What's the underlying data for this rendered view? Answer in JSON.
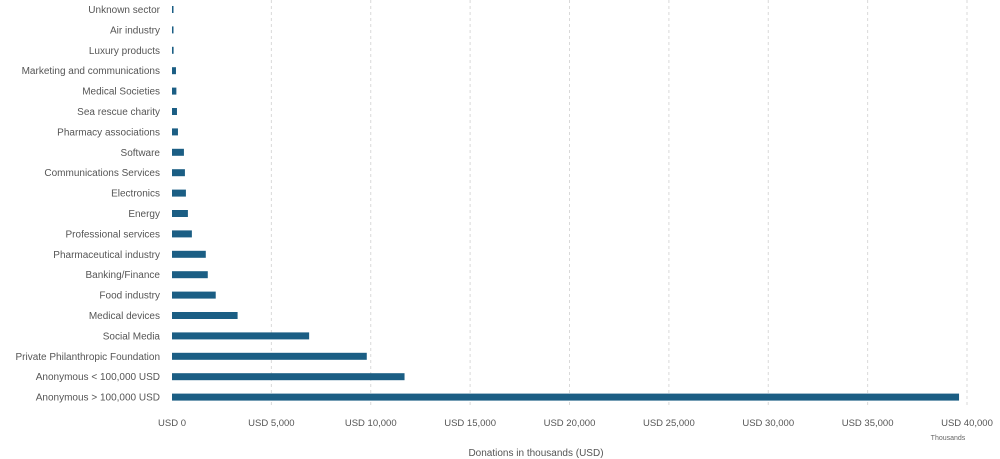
{
  "chart_data": {
    "type": "bar",
    "orientation": "horizontal",
    "categories": [
      "Unknown sector",
      "Air industry",
      "Luxury products",
      "Marketing and communications",
      "Medical Societies",
      "Sea rescue charity",
      "Pharmacy associations",
      "Software",
      "Communications Services",
      "Electronics",
      "Energy",
      "Professional services",
      "Pharmaceutical industry",
      "Banking/Finance",
      "Food industry",
      "Medical devices",
      "Social Media",
      "Private Philanthropic Foundation",
      "Anonymous < 100,000 USD",
      "Anonymous > 100,000 USD"
    ],
    "values": [
      50,
      60,
      80,
      200,
      220,
      250,
      300,
      600,
      650,
      700,
      800,
      1000,
      1700,
      1800,
      2200,
      3300,
      6900,
      9800,
      11700,
      39600
    ],
    "xlim": [
      0,
      40000
    ],
    "xticks": [
      0,
      5000,
      10000,
      15000,
      20000,
      25000,
      30000,
      35000,
      40000
    ],
    "xtick_labels": [
      "USD 0",
      "USD 5,000",
      "USD 10,000",
      "USD 15,000",
      "USD 20,000",
      "USD 25,000",
      "USD 30,000",
      "USD 35,000",
      "USD 40,000"
    ],
    "xunit_label": "Thousands",
    "xlabel": "Donations in thousands (USD)",
    "ylabel": "",
    "title": "",
    "grid": "vertical-dashed",
    "legend": "none",
    "bar_color": "#1b5e84"
  }
}
